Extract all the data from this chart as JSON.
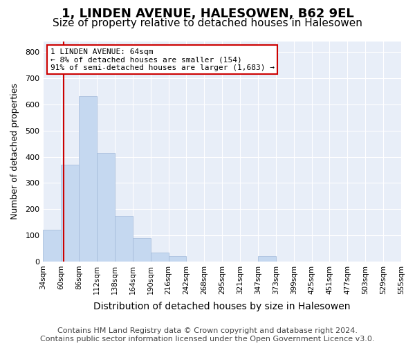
{
  "title": "1, LINDEN AVENUE, HALESOWEN, B62 9EL",
  "subtitle": "Size of property relative to detached houses in Halesowen",
  "xlabel": "Distribution of detached houses by size in Halesowen",
  "ylabel": "Number of detached properties",
  "bin_labels": [
    "34sqm",
    "60sqm",
    "86sqm",
    "112sqm",
    "138sqm",
    "164sqm",
    "190sqm",
    "216sqm",
    "242sqm",
    "268sqm",
    "295sqm",
    "321sqm",
    "347sqm",
    "373sqm",
    "399sqm",
    "425sqm",
    "451sqm",
    "477sqm",
    "503sqm",
    "529sqm",
    "555sqm"
  ],
  "bin_edges": [
    34,
    60,
    86,
    112,
    138,
    164,
    190,
    216,
    242,
    268,
    295,
    321,
    347,
    373,
    399,
    425,
    451,
    477,
    503,
    529,
    555
  ],
  "counts": [
    120,
    370,
    630,
    415,
    175,
    90,
    35,
    20,
    0,
    0,
    0,
    0,
    20,
    0,
    0,
    0,
    0,
    0,
    0,
    0
  ],
  "bar_color": "#c5d8f0",
  "bar_edgecolor": "#a0b8d8",
  "property_size": 64,
  "vline_color": "#cc0000",
  "annotation_text": "1 LINDEN AVENUE: 64sqm\n← 8% of detached houses are smaller (154)\n91% of semi-detached houses are larger (1,683) →",
  "annotation_box_color": "#ffffff",
  "annotation_box_edgecolor": "#cc0000",
  "ylim": [
    0,
    840
  ],
  "yticks": [
    0,
    100,
    200,
    300,
    400,
    500,
    600,
    700,
    800
  ],
  "plot_bg_color": "#e8eef8",
  "footer_line1": "Contains HM Land Registry data © Crown copyright and database right 2024.",
  "footer_line2": "Contains public sector information licensed under the Open Government Licence v3.0.",
  "title_fontsize": 13,
  "subtitle_fontsize": 11,
  "footer_fontsize": 8
}
